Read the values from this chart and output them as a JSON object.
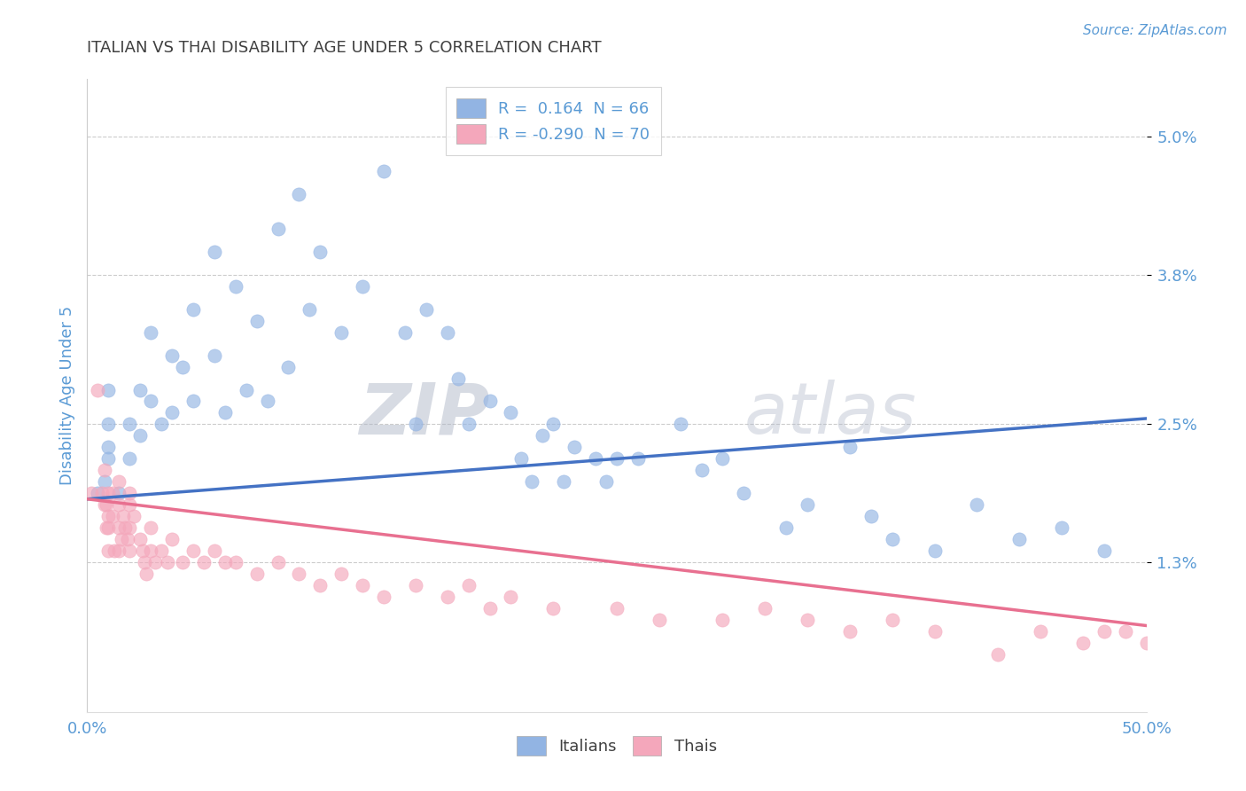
{
  "title": "ITALIAN VS THAI DISABILITY AGE UNDER 5 CORRELATION CHART",
  "source": "Source: ZipAtlas.com",
  "ylabel": "Disability Age Under 5",
  "xlim": [
    0.0,
    0.5
  ],
  "ylim": [
    0.0,
    0.055
  ],
  "yticks": [
    0.013,
    0.025,
    0.038,
    0.05
  ],
  "ytick_labels": [
    "1.3%",
    "2.5%",
    "3.8%",
    "5.0%"
  ],
  "xtick_labels": [
    "0.0%",
    "",
    "",
    "",
    "",
    "50.0%"
  ],
  "xticks": [
    0.0,
    0.1,
    0.2,
    0.3,
    0.4,
    0.5
  ],
  "legend_R": [
    "0.164",
    "-0.290"
  ],
  "legend_N": [
    "66",
    "70"
  ],
  "italian_color": "#92b4e3",
  "thai_color": "#f4a7bb",
  "italian_line_color": "#4472c4",
  "thai_line_color": "#e87090",
  "watermark_zip": "ZIP",
  "watermark_atlas": "atlas",
  "title_color": "#404040",
  "axis_label_color": "#5b9bd5",
  "tick_color": "#5b9bd5",
  "italian_intercept": 0.0185,
  "italian_slope": 0.014,
  "thai_intercept": 0.0185,
  "thai_slope": -0.022,
  "italian_points_x": [
    0.005,
    0.008,
    0.01,
    0.01,
    0.01,
    0.01,
    0.015,
    0.02,
    0.02,
    0.025,
    0.025,
    0.03,
    0.03,
    0.035,
    0.04,
    0.04,
    0.045,
    0.05,
    0.05,
    0.06,
    0.06,
    0.065,
    0.07,
    0.075,
    0.08,
    0.085,
    0.09,
    0.095,
    0.1,
    0.105,
    0.11,
    0.12,
    0.13,
    0.14,
    0.15,
    0.155,
    0.16,
    0.17,
    0.175,
    0.18,
    0.19,
    0.2,
    0.205,
    0.21,
    0.215,
    0.22,
    0.225,
    0.23,
    0.24,
    0.245,
    0.25,
    0.26,
    0.28,
    0.29,
    0.3,
    0.31,
    0.33,
    0.34,
    0.36,
    0.37,
    0.38,
    0.4,
    0.42,
    0.44,
    0.46,
    0.48
  ],
  "italian_points_y": [
    0.019,
    0.02,
    0.023,
    0.028,
    0.025,
    0.022,
    0.019,
    0.025,
    0.022,
    0.028,
    0.024,
    0.033,
    0.027,
    0.025,
    0.031,
    0.026,
    0.03,
    0.035,
    0.027,
    0.04,
    0.031,
    0.026,
    0.037,
    0.028,
    0.034,
    0.027,
    0.042,
    0.03,
    0.045,
    0.035,
    0.04,
    0.033,
    0.037,
    0.047,
    0.033,
    0.025,
    0.035,
    0.033,
    0.029,
    0.025,
    0.027,
    0.026,
    0.022,
    0.02,
    0.024,
    0.025,
    0.02,
    0.023,
    0.022,
    0.02,
    0.022,
    0.022,
    0.025,
    0.021,
    0.022,
    0.019,
    0.016,
    0.018,
    0.023,
    0.017,
    0.015,
    0.014,
    0.018,
    0.015,
    0.016,
    0.014
  ],
  "thai_points_x": [
    0.002,
    0.005,
    0.007,
    0.008,
    0.008,
    0.009,
    0.009,
    0.01,
    0.01,
    0.01,
    0.01,
    0.012,
    0.012,
    0.013,
    0.015,
    0.015,
    0.015,
    0.015,
    0.016,
    0.017,
    0.018,
    0.019,
    0.02,
    0.02,
    0.02,
    0.02,
    0.022,
    0.025,
    0.026,
    0.027,
    0.028,
    0.03,
    0.03,
    0.032,
    0.035,
    0.038,
    0.04,
    0.045,
    0.05,
    0.055,
    0.06,
    0.065,
    0.07,
    0.08,
    0.09,
    0.1,
    0.11,
    0.12,
    0.13,
    0.14,
    0.155,
    0.17,
    0.18,
    0.19,
    0.2,
    0.22,
    0.25,
    0.27,
    0.3,
    0.32,
    0.34,
    0.36,
    0.38,
    0.4,
    0.43,
    0.45,
    0.47,
    0.48,
    0.49,
    0.5
  ],
  "thai_points_y": [
    0.019,
    0.028,
    0.019,
    0.021,
    0.018,
    0.018,
    0.016,
    0.019,
    0.017,
    0.016,
    0.014,
    0.019,
    0.017,
    0.014,
    0.02,
    0.018,
    0.016,
    0.014,
    0.015,
    0.017,
    0.016,
    0.015,
    0.019,
    0.018,
    0.016,
    0.014,
    0.017,
    0.015,
    0.014,
    0.013,
    0.012,
    0.016,
    0.014,
    0.013,
    0.014,
    0.013,
    0.015,
    0.013,
    0.014,
    0.013,
    0.014,
    0.013,
    0.013,
    0.012,
    0.013,
    0.012,
    0.011,
    0.012,
    0.011,
    0.01,
    0.011,
    0.01,
    0.011,
    0.009,
    0.01,
    0.009,
    0.009,
    0.008,
    0.008,
    0.009,
    0.008,
    0.007,
    0.008,
    0.007,
    0.005,
    0.007,
    0.006,
    0.007,
    0.007,
    0.006
  ]
}
